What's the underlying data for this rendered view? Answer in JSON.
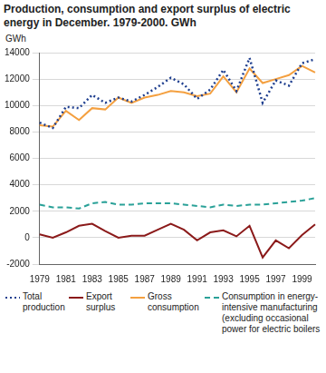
{
  "chart_data": {
    "type": "line",
    "title": "Production, consumption and export surplus of electric energy in December. 1979-2000. GWh",
    "y_label": "GWh",
    "categories": [
      "1979",
      null,
      "1981",
      null,
      "1983",
      null,
      "1985",
      null,
      "1987",
      null,
      "1989",
      null,
      "1991",
      null,
      "1993",
      null,
      "1995",
      null,
      "1997",
      null,
      "1999",
      null
    ],
    "series": [
      {
        "name": "Total production",
        "color": "#1f3f8f",
        "line_style": "dotted",
        "values": [
          8700,
          8300,
          9900,
          9800,
          10800,
          10200,
          10600,
          10300,
          10800,
          11400,
          12100,
          11600,
          10500,
          11200,
          12700,
          11100,
          13600,
          10200,
          11900,
          11500,
          13200,
          13500
        ]
      },
      {
        "name": "Export surplus",
        "color": "#8b1a1a",
        "line_style": "solid",
        "values": [
          250,
          0,
          400,
          900,
          1050,
          500,
          0,
          150,
          150,
          600,
          1050,
          600,
          -200,
          400,
          550,
          100,
          900,
          -1500,
          -200,
          -800,
          200,
          1000
        ]
      },
      {
        "name": "Gross consumption",
        "color": "#f4a040",
        "line_style": "solid",
        "values": [
          8500,
          8400,
          9600,
          8900,
          9800,
          9700,
          10600,
          10200,
          10600,
          10800,
          11100,
          11000,
          10700,
          10900,
          12200,
          11000,
          12800,
          11700,
          12000,
          12300,
          13000,
          12500
        ]
      },
      {
        "name": "Consumption in energy-intensive manufacturing (excluding occasional power for electric boilers",
        "color": "#2aa198",
        "line_style": "dashed",
        "values": [
          2500,
          2300,
          2300,
          2200,
          2600,
          2700,
          2500,
          2500,
          2600,
          2600,
          2600,
          2500,
          2400,
          2300,
          2500,
          2400,
          2500,
          2500,
          2600,
          2700,
          2800,
          3000
        ]
      }
    ],
    "ylim": [
      -2000,
      14000
    ],
    "yticks": [
      -2000,
      0,
      2000,
      4000,
      6000,
      8000,
      10000,
      12000,
      14000
    ],
    "grid": true,
    "legend": "bottom"
  }
}
